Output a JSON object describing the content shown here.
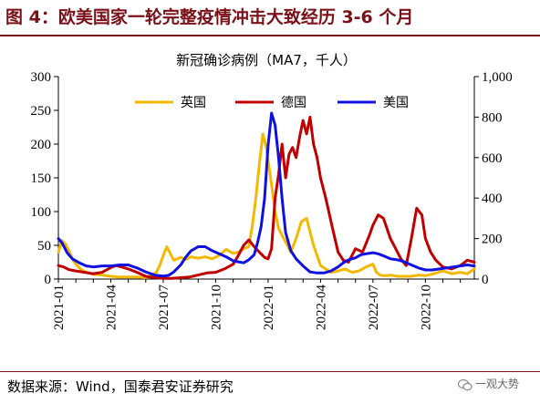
{
  "figure": {
    "title": "图 4：欧美国家一轮完整疫情冲击大致经历 3-6 个月",
    "source": "数据来源：Wind，国泰君安证券研究",
    "watermark": "一观大势"
  },
  "colors": {
    "title": "#7a1018",
    "uk": "#f5b800",
    "germany": "#c00000",
    "usa": "#1010e0"
  },
  "chart_data": {
    "type": "line",
    "title": "新冠确诊病例（MA7，千人）",
    "legend": [
      "英国",
      "德国",
      "美国"
    ],
    "legend_position": "top",
    "x_tick_labels": [
      "2021-01",
      "2021-04",
      "2021-07",
      "2021-10",
      "2022-01",
      "2022-04",
      "2022-07",
      "2022-10"
    ],
    "x_tick_months": [
      0,
      3,
      6,
      9,
      12,
      15,
      18,
      21
    ],
    "x_range_months": [
      0,
      23.8
    ],
    "y_left": {
      "range": [
        0,
        300
      ],
      "ticks": [
        0,
        50,
        100,
        150,
        200,
        250,
        300
      ]
    },
    "y_right": {
      "range": [
        0,
        1000
      ],
      "ticks": [
        "0",
        "200",
        "400",
        "600",
        "800",
        "1,000"
      ]
    },
    "grid": false,
    "series": [
      {
        "name": "英国",
        "axis": "left",
        "color_key": "uk",
        "x_months": [
          0,
          0.2,
          0.4,
          0.6,
          0.8,
          1.0,
          1.3,
          1.6,
          2.0,
          2.5,
          3.0,
          3.5,
          4.0,
          4.5,
          5.0,
          5.3,
          5.6,
          5.8,
          6.0,
          6.2,
          6.4,
          6.6,
          6.8,
          7.0,
          7.3,
          7.6,
          8.0,
          8.4,
          8.8,
          9.2,
          9.6,
          10.0,
          10.3,
          10.6,
          10.9,
          11.1,
          11.3,
          11.5,
          11.7,
          11.9,
          12.0,
          12.2,
          12.4,
          12.6,
          12.8,
          13.0,
          13.3,
          13.6,
          13.9,
          14.2,
          14.4,
          14.6,
          14.8,
          15.0,
          15.3,
          15.6,
          16.0,
          16.4,
          16.8,
          17.2,
          17.6,
          18.0,
          18.2,
          18.4,
          18.6,
          18.8,
          19.0,
          19.4,
          19.8,
          20.2,
          20.6,
          21.0,
          21.5,
          22.0,
          22.5,
          23.0,
          23.4,
          23.8
        ],
        "values": [
          40,
          57,
          52,
          42,
          30,
          22,
          14,
          10,
          7,
          6,
          4,
          3,
          3,
          3,
          2,
          5,
          10,
          20,
          35,
          48,
          38,
          28,
          30,
          32,
          29,
          33,
          31,
          33,
          30,
          35,
          44,
          38,
          40,
          45,
          48,
          80,
          120,
          170,
          215,
          195,
          175,
          140,
          100,
          75,
          65,
          55,
          40,
          60,
          85,
          90,
          70,
          50,
          35,
          20,
          15,
          10,
          12,
          15,
          10,
          12,
          18,
          22,
          10,
          6,
          5,
          5,
          6,
          4,
          4,
          4,
          6,
          5,
          8,
          12,
          8,
          10,
          8,
          15
        ]
      },
      {
        "name": "德国",
        "axis": "left",
        "color_key": "germany",
        "x_months": [
          0,
          0.3,
          0.6,
          1.0,
          1.5,
          2.0,
          2.5,
          3.0,
          3.3,
          3.6,
          4.0,
          4.5,
          5.0,
          5.5,
          6.0,
          6.5,
          7.0,
          7.5,
          8.0,
          8.5,
          9.0,
          9.5,
          10.0,
          10.3,
          10.6,
          10.9,
          11.2,
          11.5,
          11.8,
          12.0,
          12.2,
          12.4,
          12.6,
          12.8,
          13.0,
          13.2,
          13.4,
          13.6,
          13.8,
          14.0,
          14.2,
          14.4,
          14.6,
          14.8,
          15.0,
          15.3,
          15.6,
          16.0,
          16.3,
          16.6,
          17.0,
          17.4,
          17.8,
          18.0,
          18.3,
          18.6,
          19.0,
          19.3,
          19.6,
          19.9,
          20.2,
          20.5,
          20.8,
          21.0,
          21.3,
          21.6,
          22.0,
          22.5,
          23.0,
          23.4,
          23.8
        ],
        "values": [
          20,
          18,
          14,
          12,
          10,
          8,
          10,
          17,
          20,
          18,
          15,
          10,
          4,
          2,
          1,
          1,
          2,
          3,
          6,
          9,
          10,
          15,
          22,
          35,
          50,
          58,
          48,
          40,
          32,
          30,
          45,
          120,
          155,
          200,
          150,
          185,
          195,
          180,
          210,
          235,
          215,
          240,
          200,
          180,
          150,
          120,
          85,
          40,
          28,
          25,
          45,
          40,
          65,
          80,
          95,
          90,
          60,
          45,
          30,
          20,
          60,
          105,
          95,
          60,
          40,
          28,
          18,
          15,
          20,
          28,
          25
        ]
      },
      {
        "name": "美国",
        "axis": "right",
        "color_key": "usa",
        "x_months": [
          0,
          0.2,
          0.5,
          0.8,
          1.2,
          1.6,
          2.0,
          2.5,
          3.0,
          3.5,
          4.0,
          4.5,
          5.0,
          5.5,
          6.0,
          6.3,
          6.6,
          7.0,
          7.3,
          7.6,
          8.0,
          8.4,
          8.8,
          9.2,
          9.6,
          10.0,
          10.3,
          10.6,
          10.9,
          11.2,
          11.4,
          11.6,
          11.8,
          12.0,
          12.2,
          12.4,
          12.6,
          12.8,
          13.0,
          13.3,
          13.6,
          14.0,
          14.4,
          14.8,
          15.2,
          15.6,
          16.0,
          16.3,
          16.6,
          17.0,
          17.3,
          17.6,
          18.0,
          18.3,
          18.6,
          19.0,
          19.4,
          19.8,
          20.2,
          20.6,
          21.0,
          21.4,
          21.8,
          22.2,
          22.6,
          23.0,
          23.4,
          23.8
        ],
        "values": [
          200,
          180,
          130,
          100,
          80,
          65,
          60,
          65,
          65,
          70,
          70,
          55,
          35,
          20,
          15,
          18,
          35,
          70,
          110,
          140,
          160,
          160,
          140,
          125,
          110,
          90,
          85,
          80,
          95,
          120,
          180,
          260,
          400,
          660,
          820,
          760,
          600,
          400,
          230,
          140,
          100,
          65,
          35,
          30,
          30,
          40,
          60,
          80,
          95,
          105,
          120,
          125,
          130,
          125,
          115,
          100,
          95,
          85,
          70,
          55,
          45,
          45,
          50,
          55,
          60,
          65,
          70,
          65
        ]
      }
    ]
  }
}
